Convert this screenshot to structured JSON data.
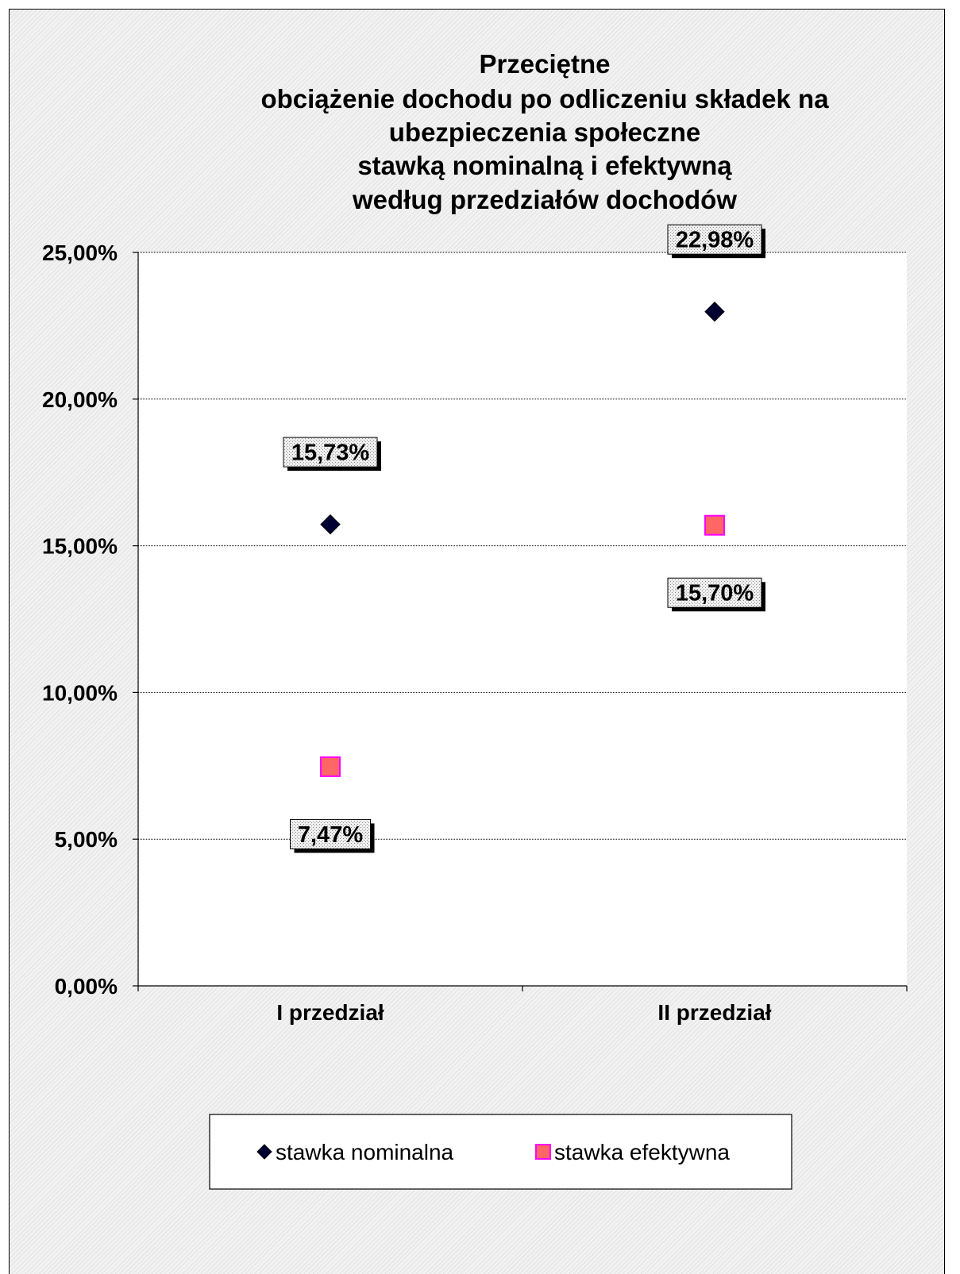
{
  "chart_data": {
    "type": "scatter",
    "title_lines": [
      "Przeciętne",
      "obciążenie dochodu po odliczeniu składek na",
      "ubezpieczenia społeczne",
      "stawką nominalną i efektywną",
      "według przedziałów dochodów"
    ],
    "categories": [
      "I przedział",
      "II przedział"
    ],
    "ylim": [
      0,
      25
    ],
    "yticks": [
      {
        "value": 0,
        "label": "0,00%"
      },
      {
        "value": 5,
        "label": "5,00%"
      },
      {
        "value": 10,
        "label": "10,00%"
      },
      {
        "value": 15,
        "label": "15,00%"
      },
      {
        "value": 20,
        "label": "20,00%"
      },
      {
        "value": 25,
        "label": "25,00%"
      }
    ],
    "grid": true,
    "legend_position": "bottom",
    "series": [
      {
        "name": "stawka nominalna",
        "marker": "diamond",
        "color": "#000033",
        "values": [
          15.73,
          22.98
        ],
        "labels": [
          "15,73%",
          "22,98%"
        ],
        "label_side": [
          "above",
          "above"
        ]
      },
      {
        "name": "stawka efektywna",
        "marker": "square",
        "color": "#ff6666",
        "edge_color": "#ff00ff",
        "values": [
          7.47,
          15.7
        ],
        "labels": [
          "7,47%",
          "15,70%"
        ],
        "label_side": [
          "below",
          "below"
        ]
      }
    ]
  }
}
